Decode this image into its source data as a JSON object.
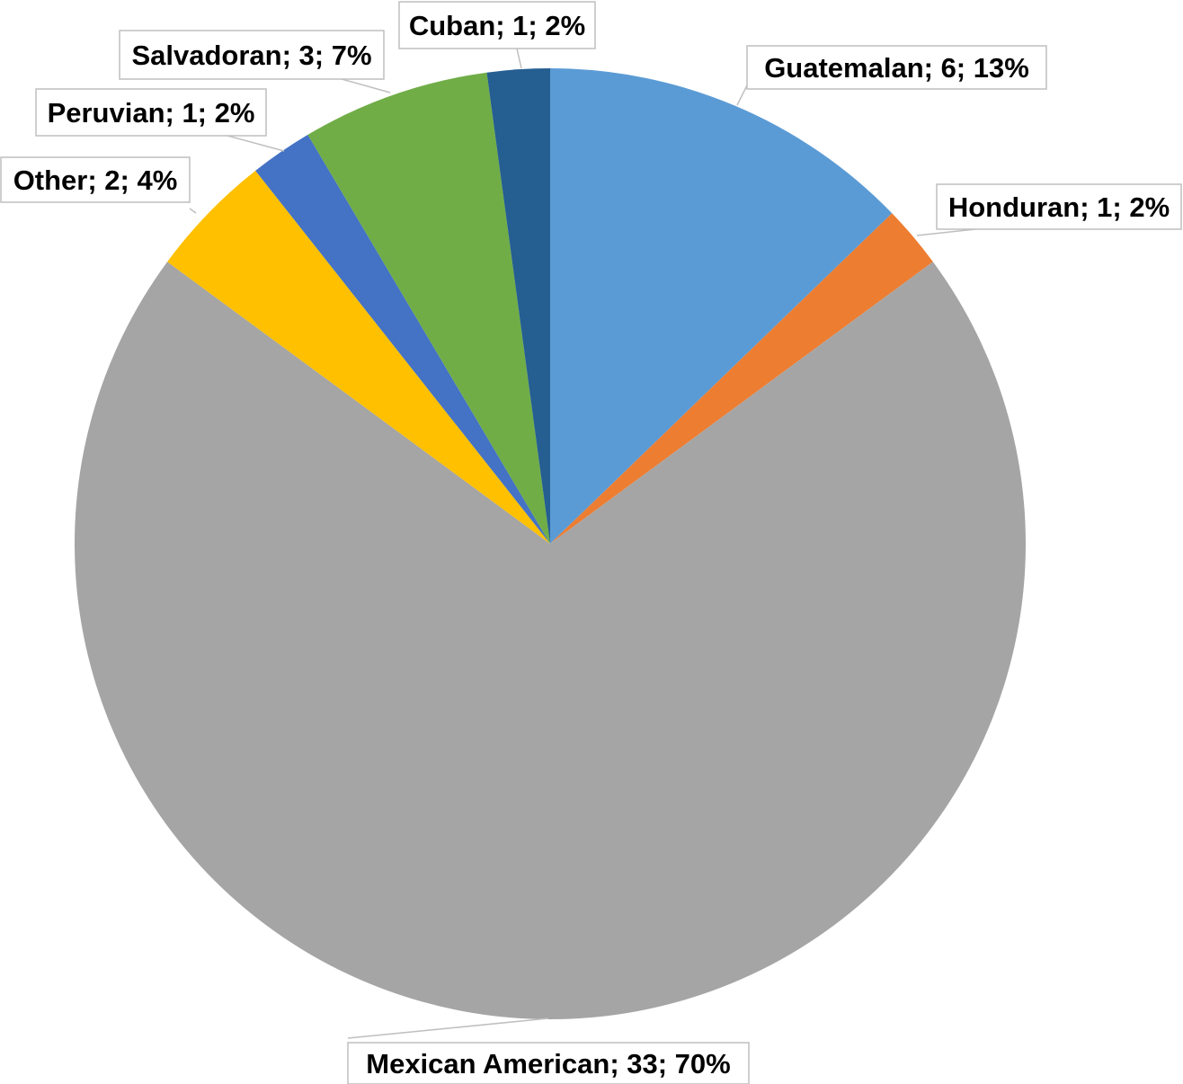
{
  "chart_data": {
    "type": "pie",
    "title": "",
    "start_angle_deg": 0,
    "direction": "clockwise",
    "slices": [
      {
        "name": "Guatemalan",
        "value": 6,
        "percent": "13%",
        "color": "#5b9bd5",
        "label": "Guatemalan; 6; 13%"
      },
      {
        "name": "Honduran",
        "value": 1,
        "percent": "2%",
        "color": "#ed7d31",
        "label": "Honduran; 1; 2%"
      },
      {
        "name": "Mexican American",
        "value": 33,
        "percent": "70%",
        "color": "#a5a5a5",
        "label": "Mexican American; 33; 70%"
      },
      {
        "name": "Other",
        "value": 2,
        "percent": "4%",
        "color": "#ffc000",
        "label": "Other; 2; 4%"
      },
      {
        "name": "Peruvian",
        "value": 1,
        "percent": "2%",
        "color": "#4472c4",
        "label": "Peruvian; 1; 2%"
      },
      {
        "name": "Salvadoran",
        "value": 3,
        "percent": "7%",
        "color": "#70ad47",
        "label": "Salvadoran; 3; 7%"
      },
      {
        "name": "Cuban",
        "value": 1,
        "percent": "2%",
        "color": "#255e91",
        "label": "Cuban; 1; 2%"
      }
    ],
    "data_labels": "outside-with-leader-lines",
    "legend": "none"
  }
}
